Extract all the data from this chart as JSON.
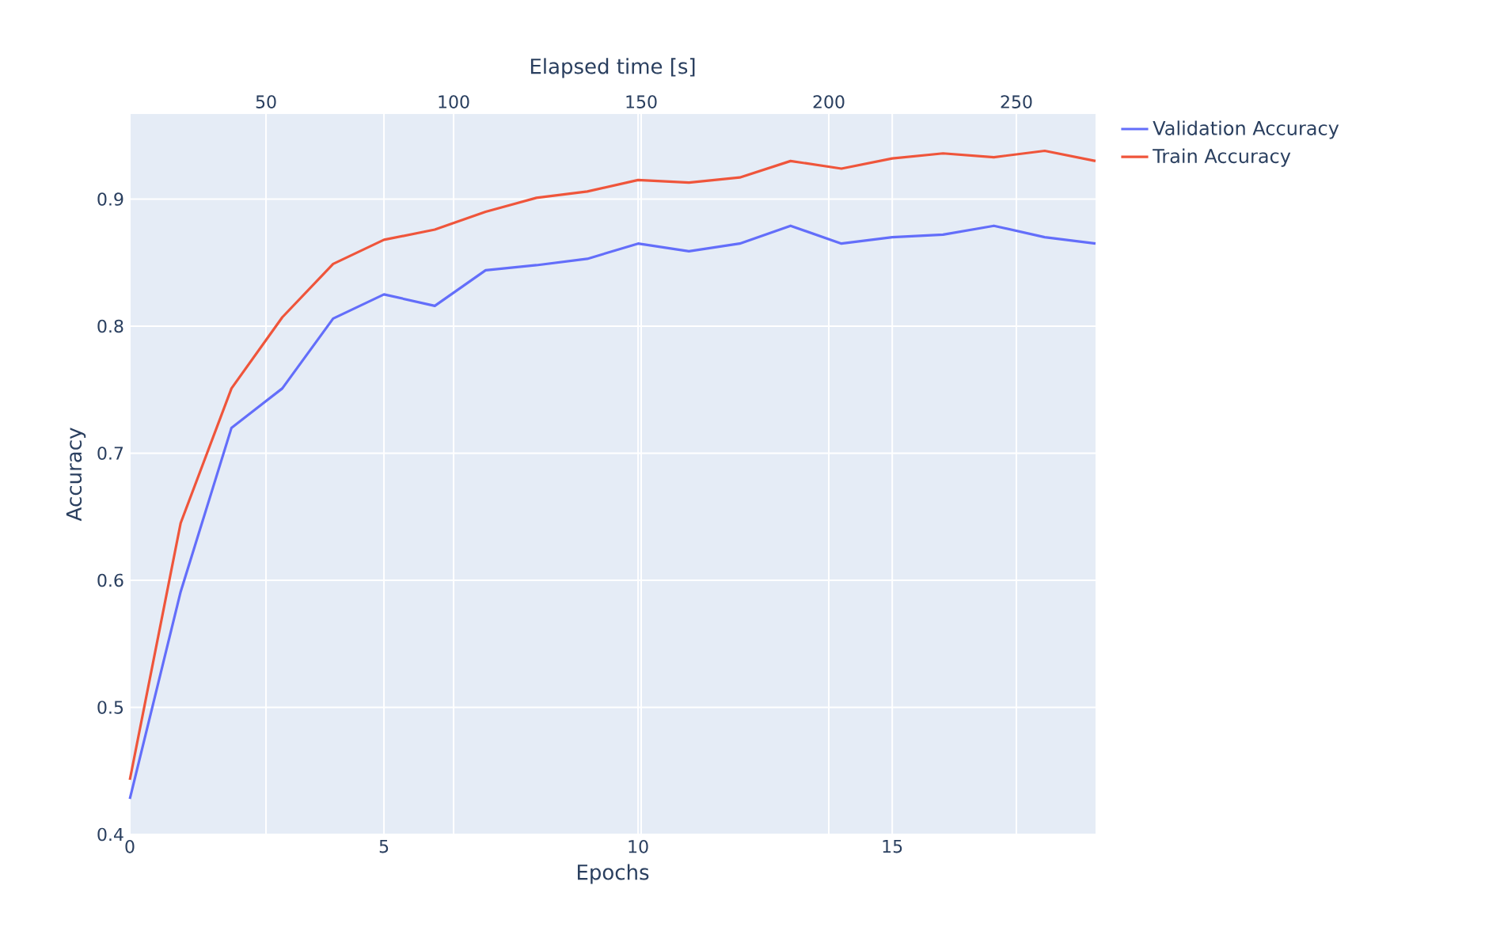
{
  "chart_data": {
    "type": "line",
    "xlabel": "Epochs",
    "ylabel": "Accuracy",
    "x2label": "Elapsed time [s]",
    "x": [
      0,
      1,
      2,
      3,
      4,
      5,
      6,
      7,
      8,
      9,
      10,
      11,
      12,
      13,
      14,
      15,
      16,
      17,
      18,
      19
    ],
    "xlim": [
      0,
      19
    ],
    "xticks": [
      0,
      5,
      10,
      15
    ],
    "x2lim": [
      13.7,
      271.1
    ],
    "x2ticks": [
      50,
      100,
      150,
      200,
      250
    ],
    "ylim": [
      0.4,
      0.967
    ],
    "yticks": [
      0.4,
      0.5,
      0.6,
      0.7,
      0.8,
      0.9
    ],
    "grid": true,
    "legend": "top right",
    "marker": "none",
    "line_style": "solid",
    "series": [
      {
        "name": "Validation Accuracy",
        "color": "#636efa",
        "values": [
          0.428,
          0.591,
          0.72,
          0.751,
          0.806,
          0.825,
          0.816,
          0.844,
          0.848,
          0.853,
          0.865,
          0.859,
          0.865,
          0.879,
          0.865,
          0.87,
          0.872,
          0.879,
          0.87,
          0.865
        ]
      },
      {
        "name": "Train Accuracy",
        "color": "#ef553b",
        "values": [
          0.443,
          0.645,
          0.751,
          0.807,
          0.849,
          0.868,
          0.876,
          0.89,
          0.901,
          0.906,
          0.915,
          0.913,
          0.917,
          0.93,
          0.924,
          0.932,
          0.936,
          0.933,
          0.938,
          0.93
        ]
      }
    ]
  }
}
